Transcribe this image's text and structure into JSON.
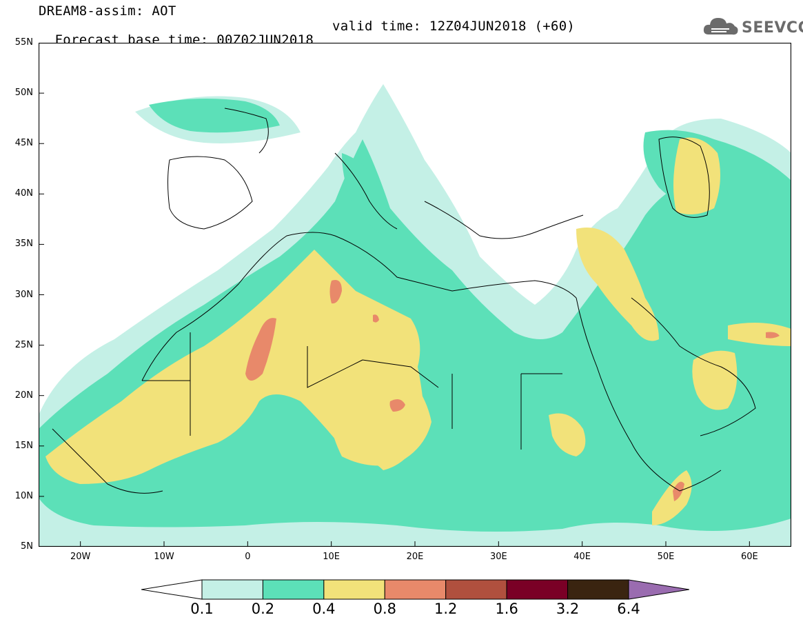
{
  "header": {
    "line1": "DREAM8-assim: AOT",
    "line2_base": "Forecast base time: 00Z02JUN2018",
    "line2_valid": "valid time: 12Z04JUN2018 (+60)"
  },
  "logo": {
    "text": "SEEVCCC",
    "icon": "cloud-icon"
  },
  "map": {
    "variable": "AOT",
    "lon_range": [
      -25,
      65
    ],
    "lat_range": [
      5,
      55
    ],
    "lat_labels": [
      "55N",
      "50N",
      "45N",
      "40N",
      "35N",
      "30N",
      "25N",
      "20N",
      "15N",
      "10N",
      "5N"
    ],
    "lon_labels": [
      "20W",
      "10W",
      "0",
      "10E",
      "20E",
      "30E",
      "40E",
      "50E",
      "60E"
    ]
  },
  "colorbar": {
    "colors": [
      "#ffffff",
      "#c4f0e6",
      "#5ce0b8",
      "#f2e27a",
      "#e8896a",
      "#b0503e",
      "#7a0026",
      "#3a2410",
      "#9a6cb0"
    ],
    "labels": [
      "0.1",
      "0.2",
      "0.4",
      "0.8",
      "1.2",
      "1.6",
      "3.2",
      "6.4"
    ]
  }
}
